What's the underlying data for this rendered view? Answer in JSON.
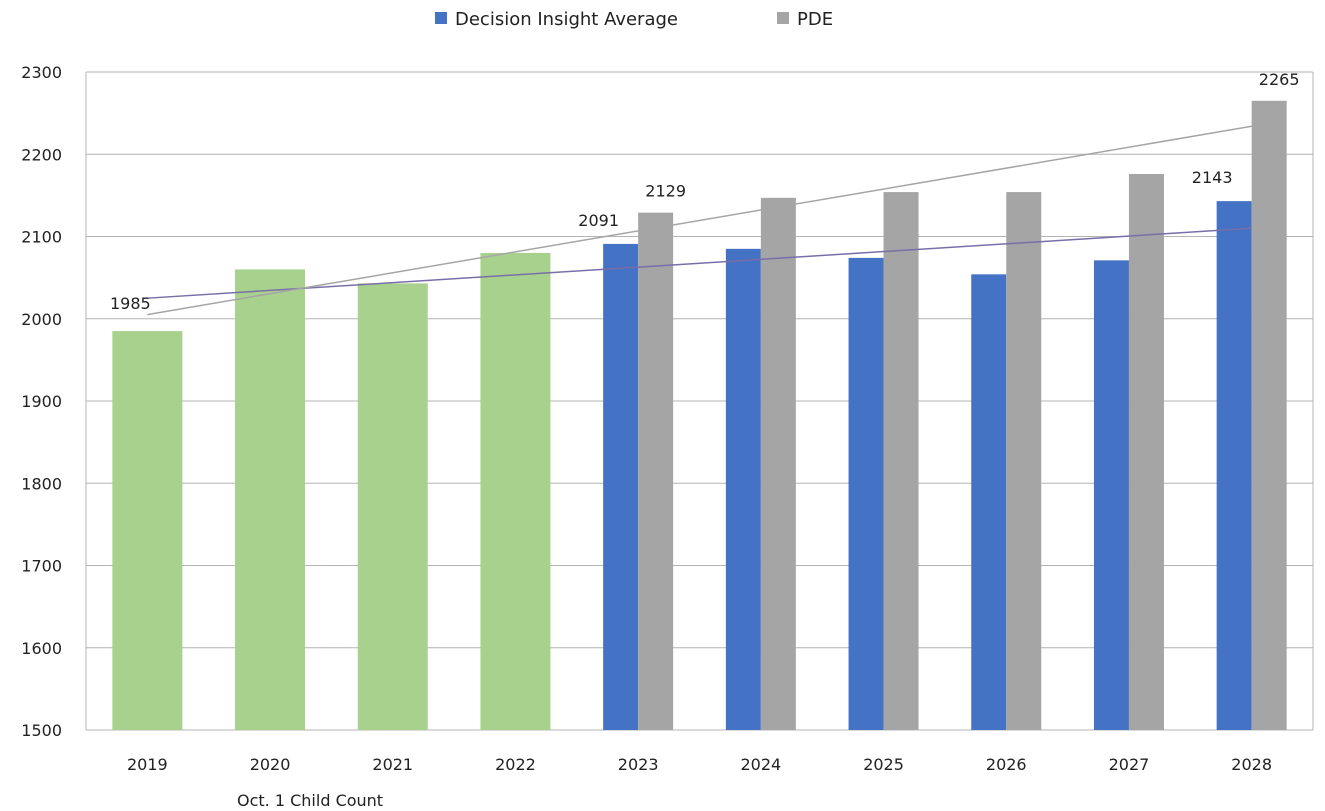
{
  "chart_data": {
    "type": "bar",
    "categories": [
      "2019",
      "2020",
      "2021",
      "2022",
      "2023",
      "2024",
      "2025",
      "2026",
      "2027",
      "2028"
    ],
    "ylim": [
      1500,
      2300
    ],
    "yticks": [
      1500,
      1600,
      1700,
      1800,
      1900,
      2000,
      2100,
      2200,
      2300
    ],
    "grid": true,
    "legend_position": "top-center",
    "series": [
      {
        "key": "child_count",
        "color": "#a9d18e",
        "values": [
          1985,
          2060,
          2043,
          2080,
          null,
          null,
          null,
          null,
          null,
          null
        ]
      },
      {
        "key": "decision_insight",
        "name": "Decision Insight Average",
        "color": "#4472c4",
        "values": [
          null,
          null,
          null,
          null,
          2091,
          2085,
          2074,
          2054,
          2071,
          2143
        ]
      },
      {
        "key": "pde",
        "name": "PDE",
        "color": "#a5a5a5",
        "values": [
          null,
          null,
          null,
          null,
          2129,
          2147,
          2154,
          2154,
          2176,
          2265
        ]
      }
    ],
    "trendlines": [
      {
        "name": "Decision Insight trend",
        "color": "#7a6ea8",
        "start": [
          0,
          2025
        ],
        "end": [
          9,
          2110
        ]
      },
      {
        "name": "PDE trend",
        "color": "#a5a5a5",
        "start": [
          0,
          2005
        ],
        "end": [
          9,
          2234
        ]
      }
    ],
    "data_labels": [
      {
        "text": "1985",
        "series": "child_count",
        "index": 0
      },
      {
        "text": "2091",
        "series": "decision_insight",
        "index": 4
      },
      {
        "text": "2129",
        "series": "pde",
        "index": 4
      },
      {
        "text": "2143",
        "series": "decision_insight",
        "index": 9
      },
      {
        "text": "2265",
        "series": "pde",
        "index": 9
      }
    ],
    "annotations": [
      {
        "text": "Oct. 1 Child Count",
        "anchor_category": "2020"
      }
    ]
  }
}
